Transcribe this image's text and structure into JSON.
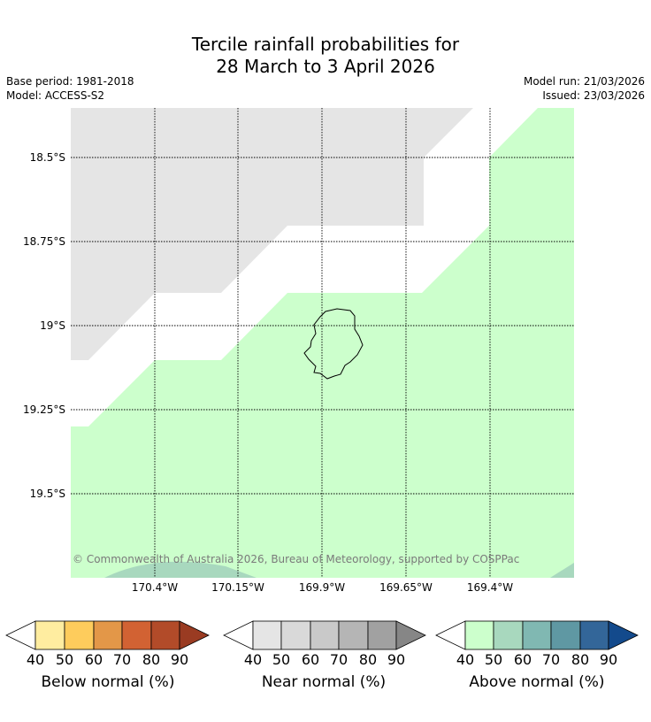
{
  "title": {
    "line1": "Tercile rainfall probabilities for",
    "line2": "28 March to 3 April 2026"
  },
  "meta": {
    "base_period": "Base period: 1981-2018",
    "model": "Model: ACCESS-S2",
    "model_run": "Model run: 21/03/2026",
    "issued": "Issued: 23/03/2026"
  },
  "map": {
    "lat_labels": [
      "18.5°S",
      "18.75°S",
      "19°S",
      "19.25°S",
      "19.5°S"
    ],
    "lon_labels": [
      "170.4°W",
      "170.15°W",
      "169.9°W",
      "169.65°W",
      "169.4°W"
    ],
    "copyright": "© Commonwealth of Australia 2026, Bureau of Meteorology, supported by COSPPac",
    "colors": {
      "near_normal_40": "#e5e5e5",
      "above_normal_40": "#ccffcc",
      "above_normal_50": "#a8d8be",
      "coastline": "#000000",
      "gridline": "#000000"
    }
  },
  "colorbars": [
    {
      "title": "Below normal (%)",
      "ticks": [
        "40",
        "50",
        "60",
        "70",
        "80",
        "90"
      ],
      "colors": [
        "#ffeda0",
        "#fecc5c",
        "#e39748",
        "#d26233",
        "#b24b29",
        "#9a3b22"
      ],
      "under_color": "#ffffff"
    },
    {
      "title": "Near normal (%)",
      "ticks": [
        "40",
        "50",
        "60",
        "70",
        "80",
        "90"
      ],
      "colors": [
        "#e5e5e5",
        "#d9d9d9",
        "#c9c9c9",
        "#b5b5b5",
        "#a1a1a1",
        "#868686"
      ],
      "under_color": "#ffffff"
    },
    {
      "title": "Above normal (%)",
      "ticks": [
        "40",
        "50",
        "60",
        "70",
        "80",
        "90"
      ],
      "colors": [
        "#ccffcc",
        "#a8d8be",
        "#80b8b2",
        "#5f98a3",
        "#336699",
        "#134a8c"
      ],
      "under_color": "#ffffff"
    }
  ]
}
